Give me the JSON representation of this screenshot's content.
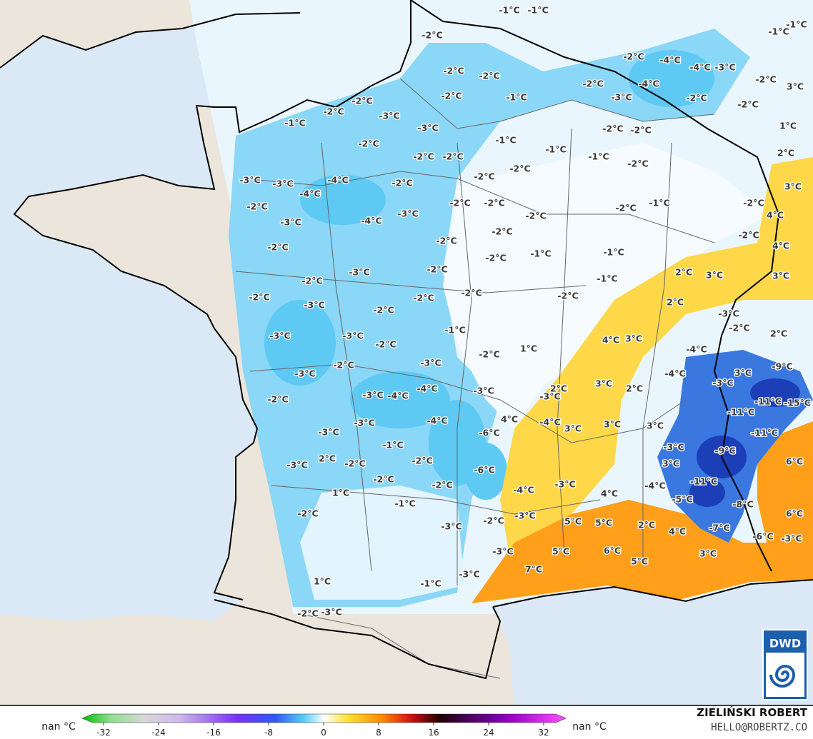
{
  "map": {
    "temperature_labels": [
      "-1°C",
      "-1°C",
      "-1°C",
      "-1°C",
      "-2°C",
      "-2°C",
      "-2°C",
      "-2°C",
      "-1°C",
      "-2°C",
      "-4°C",
      "-4°C",
      "-4°C",
      "-3°C",
      "-2°C",
      "-3°C",
      "-2°C",
      "-2°C",
      "-2°C",
      "3°C",
      "1°C",
      "-2°C",
      "-2°C",
      "-3°C",
      "-1°C",
      "-3°C",
      "-2°C",
      "-1°C",
      "-1°C",
      "-2°C",
      "-2°C",
      "-1°C",
      "-2°C",
      "2°C",
      "-2°C",
      "-2°C",
      "-2°C",
      "-2°C",
      "-3°C",
      "-3°C",
      "-4°C",
      "-4°C",
      "-2°C",
      "-2°C",
      "-2°C",
      "3°C",
      "-2°C",
      "-3°C",
      "-4°C",
      "-3°C",
      "-2°C",
      "-2°C",
      "-1°C",
      "-2°C",
      "4°C",
      "-2°C",
      "-2°C",
      "-2°C",
      "-2°C",
      "-1°C",
      "-1°C",
      "-2°C",
      "4°C",
      "-2°C",
      "-3°C",
      "-2°C",
      "2°C",
      "3°C",
      "3°C",
      "-1°C",
      "-2°C",
      "-2°C",
      "-2°C",
      "-2°C",
      "2°C",
      "-3°C",
      "-2°C",
      "-3°C",
      "-2°C",
      "2°C",
      "-1°C",
      "-3°C",
      "-3°C",
      "4°C",
      "3°C",
      "-2°C",
      "-2°C",
      "1°C",
      "-4°C",
      "-2°C",
      "-3°C",
      "-3°C",
      "-4°C",
      "3°C",
      "-9°C",
      "-2°C",
      "-3°C",
      "-4°C",
      "-4°C",
      "-3°C",
      "2°C",
      "3°C",
      "2°C",
      "-3°C",
      "-3°C",
      "-11°C",
      "-15°C",
      "-11°C",
      "4°C",
      "-4°C",
      "3°C",
      "3°C",
      "3°C",
      "-3°C",
      "-3°C",
      "-4°C",
      "-6°C",
      "-11°C",
      "-1°C",
      "-3°C",
      "-9°C",
      "-3°C",
      "2°C",
      "-2°C",
      "-2°C",
      "-6°C",
      "3°C",
      "6°C",
      "-11°C",
      "-2°C",
      "-2°C",
      "-4°C",
      "-3°C",
      "4°C",
      "-4°C",
      "1°C",
      "-5°C",
      "-8°C",
      "-2°C",
      "-1°C",
      "-3°C",
      "-2°C",
      "-3°C",
      "5°C",
      "5°C",
      "2°C",
      "4°C",
      "-7°C",
      "6°C",
      "-6°C",
      "-3°C",
      "-3°C",
      "5°C",
      "6°C",
      "5°C",
      "3°C",
      "7°C",
      "-3°C",
      "1°C",
      "-1°C",
      "-2°C",
      "-3°C"
    ],
    "legend": {
      "left_label": "nan °C",
      "right_label": "nan °C",
      "ticks": [
        -32,
        -24,
        -16,
        -8,
        0,
        8,
        16,
        24,
        32
      ]
    },
    "credit": {
      "author": "ZIELIŃSKI ROBERT",
      "contact": "HELLO@ROBERTZ.CO",
      "logo": "DWD"
    }
  }
}
